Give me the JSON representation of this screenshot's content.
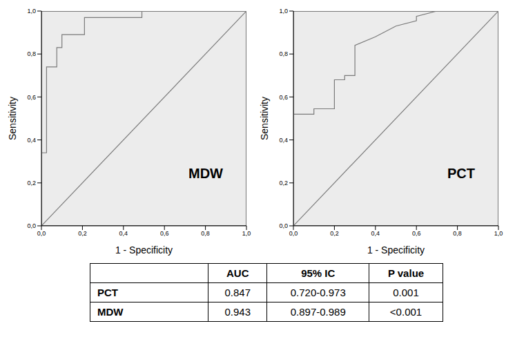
{
  "chart_data": [
    {
      "type": "line",
      "annotation": "MDW",
      "x_label": "1 - Specificity",
      "y_label": "Sensitivity",
      "xlim": [
        0,
        1
      ],
      "ylim": [
        0,
        1
      ],
      "xticks": [
        {
          "value": 0,
          "label": "0,0"
        },
        {
          "value": 0.2,
          "label": "0,2"
        },
        {
          "value": 0.4,
          "label": "0,4"
        },
        {
          "value": 0.6,
          "label": "0,6"
        },
        {
          "value": 0.8,
          "label": "0,8"
        },
        {
          "value": 1,
          "label": "1,0"
        }
      ],
      "yticks": [
        {
          "value": 0,
          "label": "0,0"
        },
        {
          "value": 0.2,
          "label": "0,2"
        },
        {
          "value": 0.4,
          "label": "0,4"
        },
        {
          "value": 0.6,
          "label": "0,6"
        },
        {
          "value": 0.8,
          "label": "0,8"
        },
        {
          "value": 1,
          "label": "1,0"
        }
      ],
      "grid": false,
      "series": [
        {
          "color": "#7a7a7a",
          "x": [
            0,
            0,
            0.025,
            0.025,
            0.075,
            0.075,
            0.1,
            0.1,
            0.21,
            0.21,
            0.49,
            0.49,
            1
          ],
          "values": [
            0,
            0.34,
            0.34,
            0.74,
            0.74,
            0.83,
            0.83,
            0.89,
            0.89,
            0.97,
            0.97,
            1,
            1
          ]
        },
        {
          "color": "#7a7a7a",
          "x": [
            0,
            1
          ],
          "values": [
            0,
            1
          ]
        }
      ]
    },
    {
      "type": "line",
      "annotation": "PCT",
      "x_label": "1 - Specificity",
      "y_label": "Sensitivity",
      "xlim": [
        0,
        1
      ],
      "ylim": [
        0,
        1
      ],
      "xticks": [
        {
          "value": 0,
          "label": "0,0"
        },
        {
          "value": 0.2,
          "label": "0,2"
        },
        {
          "value": 0.4,
          "label": "0,4"
        },
        {
          "value": 0.6,
          "label": "0,6"
        },
        {
          "value": 0.8,
          "label": "0,8"
        },
        {
          "value": 1,
          "label": "1,0"
        }
      ],
      "yticks": [
        {
          "value": 0,
          "label": "0,0"
        },
        {
          "value": 0.2,
          "label": "0,2"
        },
        {
          "value": 0.4,
          "label": "0,4"
        },
        {
          "value": 0.6,
          "label": "0,6"
        },
        {
          "value": 0.8,
          "label": "0,8"
        },
        {
          "value": 1,
          "label": "1,0"
        }
      ],
      "grid": false,
      "series": [
        {
          "color": "#7a7a7a",
          "x": [
            0,
            0,
            0.1,
            0.1,
            0.2,
            0.2,
            0.25,
            0.25,
            0.3,
            0.3,
            0.4,
            0.5,
            0.6,
            0.6,
            0.7,
            1
          ],
          "values": [
            0,
            0.52,
            0.52,
            0.545,
            0.545,
            0.68,
            0.68,
            0.7,
            0.7,
            0.84,
            0.88,
            0.93,
            0.955,
            0.975,
            1,
            1
          ]
        },
        {
          "color": "#7a7a7a",
          "x": [
            0,
            1
          ],
          "values": [
            0,
            1
          ]
        }
      ]
    }
  ],
  "table": {
    "header": [
      "AUC",
      "95% IC",
      "P value"
    ],
    "rows": [
      {
        "label": "PCT",
        "cells": [
          "0.847",
          "0.720-0.973",
          "0.001"
        ]
      },
      {
        "label": "MDW",
        "cells": [
          "0.943",
          "0.897-0.989",
          "<0.001"
        ]
      }
    ]
  }
}
